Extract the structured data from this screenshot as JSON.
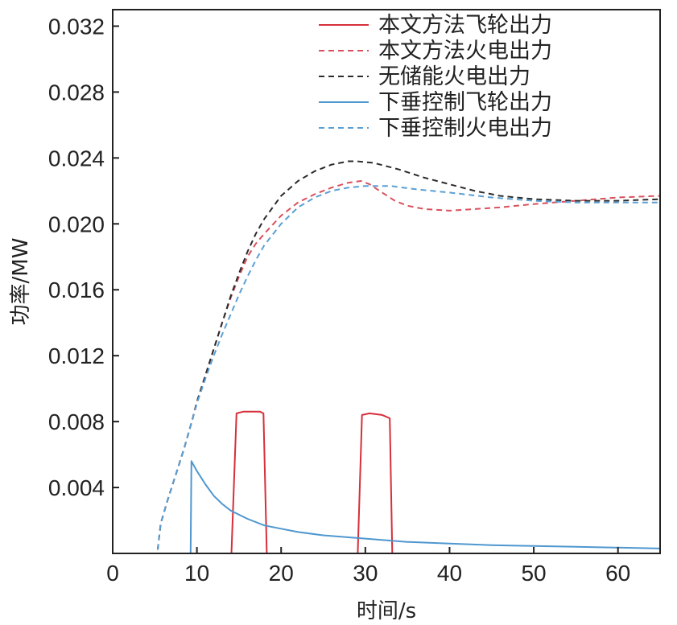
{
  "chart_data": {
    "type": "line",
    "xlabel": "时间/s",
    "ylabel": "功率/MW",
    "xlim": [
      0,
      65
    ],
    "ylim": [
      0,
      0.033
    ],
    "x_ticks": [
      {
        "value": 0,
        "label": "0"
      },
      {
        "value": 10,
        "label": "10"
      },
      {
        "value": 20,
        "label": "20"
      },
      {
        "value": 30,
        "label": "30"
      },
      {
        "value": 40,
        "label": "40"
      },
      {
        "value": 50,
        "label": "50"
      },
      {
        "value": 60,
        "label": "60"
      }
    ],
    "y_ticks": [
      {
        "value": 0.004,
        "label": "0.004"
      },
      {
        "value": 0.008,
        "label": "0.008"
      },
      {
        "value": 0.012,
        "label": "0.012"
      },
      {
        "value": 0.016,
        "label": "0.016"
      },
      {
        "value": 0.02,
        "label": "0.020"
      },
      {
        "value": 0.024,
        "label": "0.024"
      },
      {
        "value": 0.028,
        "label": "0.028"
      },
      {
        "value": 0.032,
        "label": "0.032"
      }
    ],
    "grid": false,
    "legend_position": "top-right",
    "series": [
      {
        "name": "本文方法飞轮出力",
        "color": "#d62f3a",
        "dash": "solid",
        "points": [
          [
            0,
            0
          ],
          [
            14.1,
            0
          ],
          [
            14.7,
            0.0085
          ],
          [
            15.5,
            0.0086
          ],
          [
            17.5,
            0.0086
          ],
          [
            17.9,
            0.0085
          ],
          [
            18.3,
            0
          ],
          [
            29.1,
            0
          ],
          [
            29.6,
            0.0084
          ],
          [
            30.5,
            0.0085
          ],
          [
            32,
            0.0084
          ],
          [
            32.9,
            0.0082
          ],
          [
            33.2,
            0
          ],
          [
            65,
            0
          ]
        ]
      },
      {
        "name": "本文方法火电出力",
        "color": "#d9505c",
        "dash": "dashed",
        "points": [
          [
            0,
            0
          ],
          [
            5.3,
            0
          ],
          [
            5.7,
            0.0018
          ],
          [
            6.5,
            0.0032
          ],
          [
            7.5,
            0.0048
          ],
          [
            8.5,
            0.0064
          ],
          [
            9.5,
            0.0082
          ],
          [
            10,
            0.0092
          ],
          [
            11,
            0.0108
          ],
          [
            12,
            0.0124
          ],
          [
            13,
            0.014
          ],
          [
            14,
            0.0155
          ],
          [
            15,
            0.0168
          ],
          [
            16,
            0.018
          ],
          [
            17,
            0.0188
          ],
          [
            18,
            0.0194
          ],
          [
            20,
            0.0205
          ],
          [
            22,
            0.0213
          ],
          [
            24,
            0.0218
          ],
          [
            26,
            0.0222
          ],
          [
            28,
            0.0225
          ],
          [
            29.5,
            0.0226
          ],
          [
            30.5,
            0.0224
          ],
          [
            32,
            0.0219
          ],
          [
            33.5,
            0.0214
          ],
          [
            35,
            0.0211
          ],
          [
            37,
            0.0209
          ],
          [
            40,
            0.0208
          ],
          [
            43,
            0.0209
          ],
          [
            46,
            0.021
          ],
          [
            50,
            0.0212
          ],
          [
            55,
            0.0214
          ],
          [
            60,
            0.0216
          ],
          [
            65,
            0.0217
          ]
        ]
      },
      {
        "name": "无储能火电出力",
        "color": "#2b2b2b",
        "dash": "dashed",
        "points": [
          [
            0,
            0
          ],
          [
            5.3,
            0
          ],
          [
            5.7,
            0.0018
          ],
          [
            6.5,
            0.0032
          ],
          [
            7.5,
            0.0048
          ],
          [
            8.5,
            0.0064
          ],
          [
            9.5,
            0.0082
          ],
          [
            10,
            0.0092
          ],
          [
            11,
            0.0108
          ],
          [
            12,
            0.0124
          ],
          [
            13,
            0.014
          ],
          [
            14,
            0.0156
          ],
          [
            15,
            0.017
          ],
          [
            16,
            0.0183
          ],
          [
            17,
            0.0194
          ],
          [
            18,
            0.0203
          ],
          [
            20,
            0.0217
          ],
          [
            22,
            0.0226
          ],
          [
            24,
            0.0232
          ],
          [
            26,
            0.0236
          ],
          [
            28,
            0.0238
          ],
          [
            29,
            0.0238
          ],
          [
            31,
            0.0237
          ],
          [
            34,
            0.0233
          ],
          [
            37,
            0.0228
          ],
          [
            40,
            0.0224
          ],
          [
            43,
            0.022
          ],
          [
            46,
            0.0217
          ],
          [
            50,
            0.0215
          ],
          [
            55,
            0.0214
          ],
          [
            60,
            0.0214
          ],
          [
            65,
            0.0215
          ]
        ]
      },
      {
        "name": "下垂控制飞轮出力",
        "color": "#4f97cf",
        "dash": "solid",
        "points": [
          [
            0,
            0
          ],
          [
            9.25,
            0
          ],
          [
            9.35,
            0.0056
          ],
          [
            10,
            0.005
          ],
          [
            11,
            0.0042
          ],
          [
            12,
            0.0035
          ],
          [
            13,
            0.003
          ],
          [
            14,
            0.0026
          ],
          [
            16,
            0.0021
          ],
          [
            18,
            0.0017
          ],
          [
            20,
            0.0015
          ],
          [
            22,
            0.0013
          ],
          [
            25,
            0.0011
          ],
          [
            30,
            0.0009
          ],
          [
            35,
            0.0007
          ],
          [
            40,
            0.0006
          ],
          [
            45,
            0.0005
          ],
          [
            50,
            0.00045
          ],
          [
            55,
            0.0004
          ],
          [
            60,
            0.00035
          ],
          [
            65,
            0.0003
          ]
        ]
      },
      {
        "name": "下垂控制火电出力",
        "color": "#5a9fd4",
        "dash": "dashed",
        "points": [
          [
            0,
            0
          ],
          [
            5.3,
            0
          ],
          [
            5.7,
            0.0018
          ],
          [
            6.5,
            0.0032
          ],
          [
            7.5,
            0.0048
          ],
          [
            8.5,
            0.0064
          ],
          [
            9.5,
            0.0082
          ],
          [
            10,
            0.0091
          ],
          [
            11,
            0.0106
          ],
          [
            12,
            0.012
          ],
          [
            13,
            0.0133
          ],
          [
            14,
            0.0145
          ],
          [
            15,
            0.0157
          ],
          [
            16,
            0.0168
          ],
          [
            17,
            0.0178
          ],
          [
            18,
            0.0187
          ],
          [
            20,
            0.02
          ],
          [
            22,
            0.021
          ],
          [
            24,
            0.0216
          ],
          [
            26,
            0.022
          ],
          [
            28,
            0.0222
          ],
          [
            30,
            0.0223
          ],
          [
            33,
            0.0223
          ],
          [
            36,
            0.0221
          ],
          [
            40,
            0.0219
          ],
          [
            45,
            0.0216
          ],
          [
            50,
            0.0214
          ],
          [
            55,
            0.0213
          ],
          [
            60,
            0.0213
          ],
          [
            65,
            0.0213
          ]
        ]
      }
    ]
  }
}
